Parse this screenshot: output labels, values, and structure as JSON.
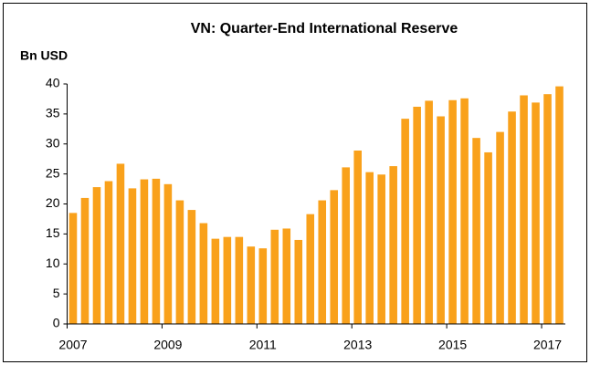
{
  "chart_data": {
    "type": "bar",
    "title": "VN: Quarter-End International Reserve",
    "y_label": "Bn USD",
    "categories": [
      "2007",
      null,
      null,
      null,
      null,
      null,
      null,
      null,
      "2009",
      null,
      null,
      null,
      null,
      null,
      null,
      null,
      "2011",
      null,
      null,
      null,
      null,
      null,
      null,
      null,
      "2013",
      null,
      null,
      null,
      null,
      null,
      null,
      null,
      "2015",
      null,
      null,
      null,
      null,
      null,
      null,
      null,
      "2017",
      null
    ],
    "values": [
      18.5,
      21.0,
      22.8,
      23.8,
      26.7,
      22.6,
      24.1,
      24.2,
      23.3,
      20.6,
      19.0,
      16.8,
      14.2,
      14.5,
      14.5,
      12.9,
      12.6,
      15.7,
      15.9,
      14.0,
      18.3,
      20.6,
      22.3,
      26.1,
      28.9,
      25.3,
      24.9,
      26.3,
      34.2,
      36.2,
      37.2,
      34.6,
      37.3,
      37.6,
      31.0,
      28.6,
      32.0,
      35.4,
      38.1,
      36.9,
      38.3,
      39.6
    ],
    "color": "#f9a11b",
    "ylim": [
      0,
      40
    ],
    "yticks": [
      0,
      5,
      10,
      15,
      20,
      25,
      30,
      35,
      40
    ],
    "grid": false
  }
}
